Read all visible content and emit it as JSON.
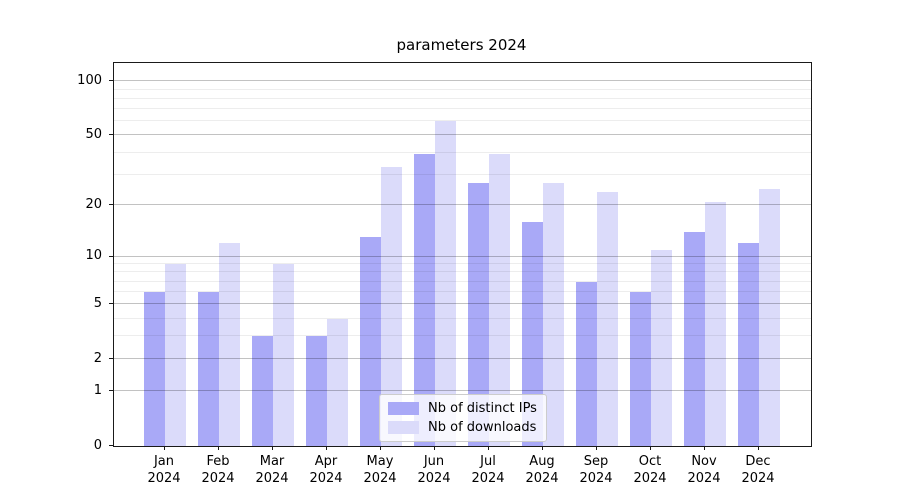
{
  "chart_data": {
    "type": "bar",
    "title": "parameters 2024",
    "categories": [
      {
        "month": "Jan",
        "year": "2024"
      },
      {
        "month": "Feb",
        "year": "2024"
      },
      {
        "month": "Mar",
        "year": "2024"
      },
      {
        "month": "Apr",
        "year": "2024"
      },
      {
        "month": "May",
        "year": "2024"
      },
      {
        "month": "Jun",
        "year": "2024"
      },
      {
        "month": "Jul",
        "year": "2024"
      },
      {
        "month": "Aug",
        "year": "2024"
      },
      {
        "month": "Sep",
        "year": "2024"
      },
      {
        "month": "Oct",
        "year": "2024"
      },
      {
        "month": "Nov",
        "year": "2024"
      },
      {
        "month": "Dec",
        "year": "2024"
      }
    ],
    "series": [
      {
        "name": "Nb of distinct IPs",
        "color": "#a9a9f7",
        "values": [
          6,
          6,
          3,
          3,
          13,
          39,
          27,
          16,
          7,
          6,
          14,
          12
        ]
      },
      {
        "name": "Nb of downloads",
        "color": "#dbdbfa",
        "values": [
          9,
          12,
          9,
          4,
          33,
          60,
          39,
          27,
          24,
          11,
          21,
          25
        ]
      }
    ],
    "yscale": "log1p",
    "ylim": [
      0,
      126
    ],
    "yticks": [
      0,
      1,
      2,
      5,
      10,
      20,
      50,
      100
    ],
    "minor_yticks": [
      3,
      4,
      6,
      7,
      8,
      9,
      30,
      40,
      60,
      70,
      80,
      90
    ],
    "grid": true,
    "legend_position": "lower center",
    "colors": {
      "grid_major": "#c2c2c2",
      "grid_minor": "#ededed",
      "spine": "#1a1a1a",
      "text": "#000000",
      "background": "#ffffff"
    }
  }
}
